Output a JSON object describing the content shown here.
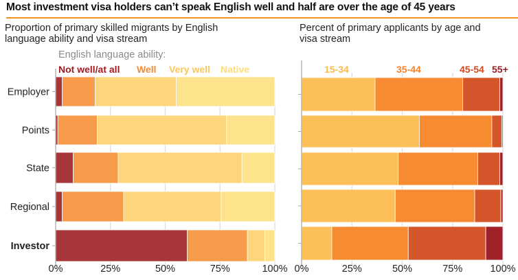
{
  "title": "Most investment visa holders can’t speak English well and half are over the age of 45 years",
  "accent_color": "#f39322",
  "chart_data": [
    {
      "type": "bar",
      "orientation": "horizontal",
      "stacked": true,
      "title": "Proportion of primary skilled migrants by English\nlanguage ability and visa stream",
      "legend_title": "English language ability:",
      "legend_position": "top",
      "categories": [
        "Employer",
        "Points",
        "State",
        "Regional",
        "Investor"
      ],
      "bold_categories": [
        "Investor"
      ],
      "series": [
        {
          "name": "Not well/at all",
          "color": "#a8353a",
          "label_color": "#a01c22",
          "values": [
            3,
            1,
            8,
            3,
            60
          ]
        },
        {
          "name": "Well",
          "color": "#f79a4a",
          "label_color": "#f58a35",
          "values": [
            15,
            18,
            20.5,
            28,
            27.5
          ]
        },
        {
          "name": "Very well",
          "color": "#fdd57c",
          "label_color": "#fdc659",
          "values": [
            37,
            59,
            56.5,
            44.5,
            8
          ]
        },
        {
          "name": "Native",
          "color": "#fee38d",
          "label_color": "#fedc78",
          "values": [
            45,
            22,
            15,
            24.5,
            4.5
          ]
        }
      ],
      "x_ticks": [
        "0%",
        "25%",
        "50%",
        "75%",
        "100%"
      ],
      "xlim": [
        0,
        100
      ],
      "xlabel": "",
      "ylabel": "",
      "grid": true
    },
    {
      "type": "bar",
      "orientation": "horizontal",
      "stacked": true,
      "title": "Percent of primary applicants by age and\nvisa stream",
      "legend_position": "top",
      "categories": [
        "Employer",
        "Points",
        "State",
        "Regional",
        "Investor"
      ],
      "series": [
        {
          "name": "15-34",
          "color": "#fdc058",
          "label_color": "#fdb94a",
          "values": [
            36.5,
            58.5,
            48,
            46.5,
            15
          ]
        },
        {
          "name": "35-44",
          "color": "#f68b31",
          "label_color": "#f5822a",
          "values": [
            43.5,
            36,
            39.5,
            39.5,
            38
          ]
        },
        {
          "name": "45-54",
          "color": "#d5562a",
          "label_color": "#d14a1f",
          "values": [
            18.5,
            5,
            11,
            13,
            38.5
          ]
        },
        {
          "name": "55+",
          "color": "#a02127",
          "label_color": "#9c1b22",
          "values": [
            1.5,
            0.5,
            1.5,
            1,
            8.5
          ]
        }
      ],
      "x_ticks": [
        "0%",
        "25%",
        "50%",
        "75%",
        "100%"
      ],
      "xlim": [
        0,
        100
      ],
      "xlabel": "",
      "ylabel": "",
      "grid": true
    }
  ]
}
